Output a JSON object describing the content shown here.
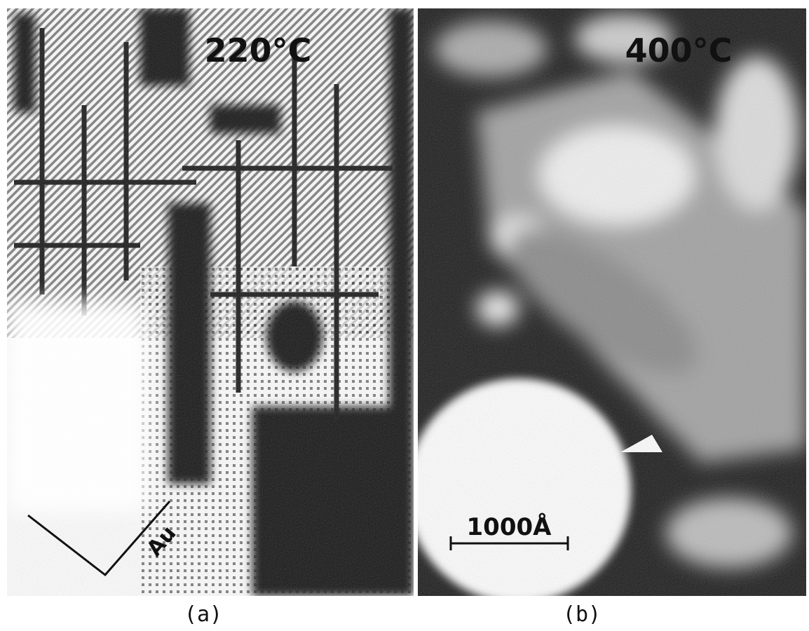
{
  "panels": [
    {
      "label": "220°C",
      "caption": "(a)",
      "axis_label": "Au"
    },
    {
      "label": "400°C",
      "caption": "(b)",
      "scale_bar": "1000Å"
    }
  ]
}
